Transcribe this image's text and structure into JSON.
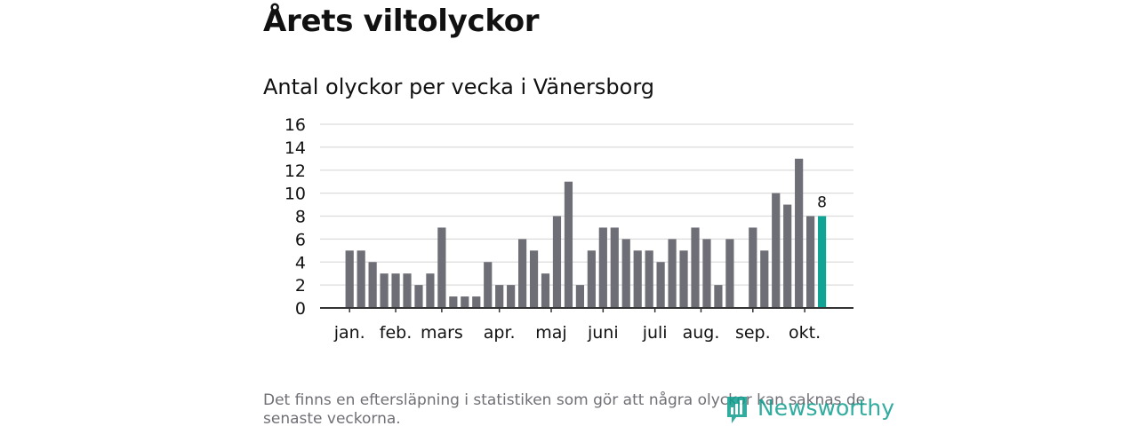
{
  "title": "Årets viltolyckor",
  "chart_data": {
    "type": "bar",
    "title": "Antal olyckor per vecka i Vänersborg",
    "xlabel": "",
    "ylabel": "",
    "ylim": [
      0,
      16
    ],
    "yticks": [
      0,
      2,
      4,
      6,
      8,
      10,
      12,
      14,
      16
    ],
    "grid": true,
    "weeks": [
      1,
      2,
      3,
      4,
      5,
      6,
      7,
      8,
      9,
      10,
      11,
      12,
      13,
      14,
      15,
      16,
      17,
      18,
      19,
      20,
      21,
      22,
      23,
      24,
      25,
      26,
      27,
      28,
      29,
      30,
      31,
      32,
      33,
      34,
      35,
      36,
      37,
      38,
      39,
      40,
      41,
      42
    ],
    "values": [
      5,
      5,
      4,
      3,
      3,
      3,
      2,
      3,
      7,
      1,
      1,
      1,
      4,
      2,
      2,
      6,
      5,
      3,
      8,
      11,
      2,
      5,
      7,
      7,
      6,
      5,
      5,
      4,
      6,
      5,
      7,
      6,
      2,
      6,
      0,
      7,
      5,
      10,
      9,
      13,
      8,
      8
    ],
    "highlight_index": 41,
    "highlight_label": "8",
    "month_labels": [
      {
        "label": "jan.",
        "week": 1.0
      },
      {
        "label": "feb.",
        "week": 5.0
      },
      {
        "label": "mars",
        "week": 9.0
      },
      {
        "label": "apr.",
        "week": 14.0
      },
      {
        "label": "maj",
        "week": 18.5
      },
      {
        "label": "juni",
        "week": 23.0
      },
      {
        "label": "juli",
        "week": 27.5
      },
      {
        "label": "aug.",
        "week": 31.5
      },
      {
        "label": "sep.",
        "week": 36.0
      },
      {
        "label": "okt.",
        "week": 40.5
      }
    ],
    "month_tick_weeks": [
      1.0,
      5.0,
      9.0,
      14.0,
      18.5,
      23.0,
      27.5,
      31.5,
      36.0,
      40.5
    ],
    "bar_color": "#6e6e76",
    "highlight_color": "#10a496",
    "grid_color": "#dcdcdc",
    "axis_color": "#333333"
  },
  "footnote": "Det finns en eftersläpning i statistiken som gör att några olyckor kan saknas de senaste veckorna.",
  "logo": {
    "text": "Newsworthy",
    "icon": "newsworthy-logo-icon",
    "color": "#0e9e8e"
  }
}
